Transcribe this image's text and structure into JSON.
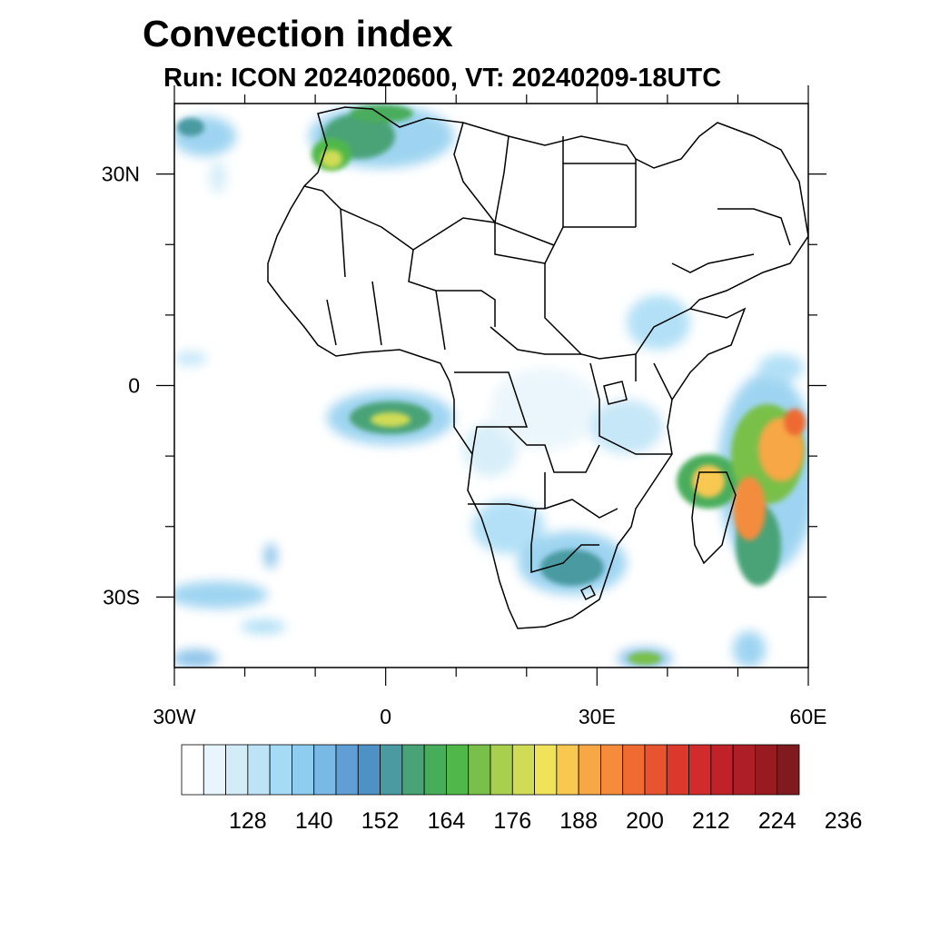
{
  "title": "Convection index",
  "subtitle": "Run: ICON 2024020600,  VT: 20240209-18UTC",
  "map": {
    "lon_range": [
      -30,
      60
    ],
    "lat_range": [
      -40,
      40
    ],
    "lat_ticks": [
      {
        "value": 30,
        "label": "30N"
      },
      {
        "value": 0,
        "label": "0"
      },
      {
        "value": -30,
        "label": "30S"
      }
    ],
    "lon_ticks": [
      {
        "value": -30,
        "label": "30W"
      },
      {
        "value": 0,
        "label": "0"
      },
      {
        "value": 30,
        "label": "30E"
      },
      {
        "value": 60,
        "label": "60E"
      }
    ],
    "minor_lon_ticks": [
      -20,
      -10,
      10,
      20,
      40,
      50
    ],
    "minor_lat_ticks": [
      20,
      10,
      -10,
      -20
    ]
  },
  "colorbar": {
    "colors": [
      "#ffffff",
      "#e8f5fc",
      "#d2ecf8",
      "#bde3f7",
      "#a6dbf5",
      "#8ecdef",
      "#78b9e6",
      "#5f9fd5",
      "#4e92c5",
      "#4a9aa1",
      "#4aa377",
      "#48ad5b",
      "#50b848",
      "#79c04a",
      "#a9cf4f",
      "#d0dc55",
      "#f0e35a",
      "#f8c851",
      "#f7a745",
      "#f48c3c",
      "#ef6b32",
      "#e85430",
      "#dc382c",
      "#d22b2b",
      "#c1222a",
      "#ad1e26",
      "#991b22",
      "#801a1e"
    ],
    "tick_labels": [
      "128",
      "140",
      "152",
      "164",
      "176",
      "188",
      "200",
      "212",
      "224",
      "236"
    ]
  }
}
